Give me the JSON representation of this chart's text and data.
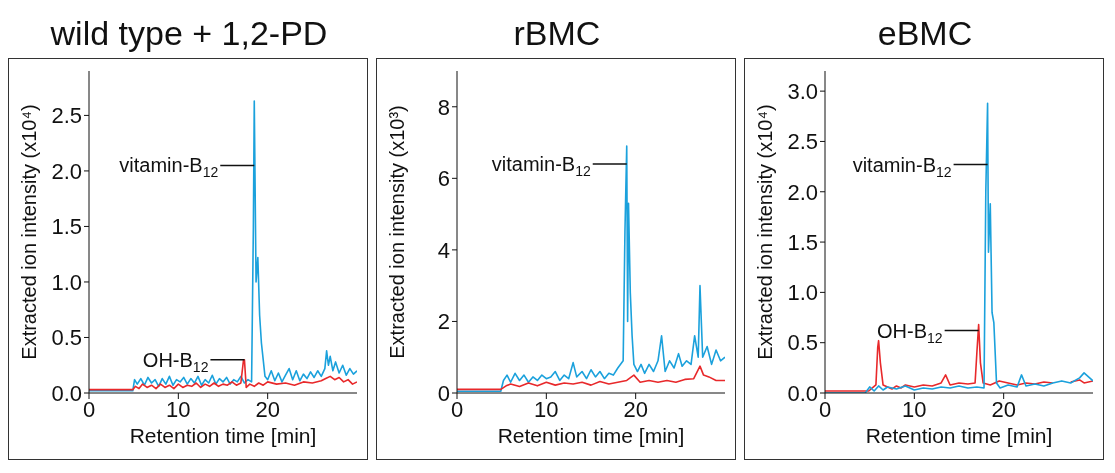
{
  "chart_data": [
    {
      "type": "line",
      "title": "wild type + 1,2-PD",
      "xlabel": "Retention time [min]",
      "ylabel": "Extracted ion intensity (x10⁴)",
      "xlim": [
        0,
        30
      ],
      "xticks": [
        0,
        10,
        20
      ],
      "ylim": [
        0,
        2.9
      ],
      "yticks": [
        {
          "value": 0,
          "label": "0.0"
        },
        0.5,
        {
          "value": 1,
          "label": "1.0"
        },
        1.5,
        {
          "value": 2,
          "label": "2.0"
        },
        2.5
      ],
      "annotations": [
        {
          "text": "vitamin-B$_{12}$",
          "x": 18.5,
          "y": 2.05
        },
        {
          "text": "OH-B$_{12}$",
          "x": 17.4,
          "y": 0.3
        }
      ],
      "series": [
        {
          "color": "#1ba1dc",
          "x": [
            0,
            4.9,
            5.1,
            5.4,
            5.8,
            6.2,
            6.6,
            7.0,
            7.4,
            7.8,
            8.2,
            8.6,
            9.0,
            9.4,
            9.8,
            10.2,
            10.6,
            11.0,
            11.4,
            11.8,
            12.2,
            12.6,
            13.0,
            13.4,
            13.8,
            14.2,
            14.6,
            15.0,
            15.4,
            15.8,
            16.2,
            16.6,
            17.0,
            17.4,
            17.8,
            18.2,
            18.4,
            18.5,
            18.7,
            18.9,
            19.1,
            19.3,
            19.5,
            19.7,
            20.0,
            20.4,
            20.8,
            21.2,
            21.6,
            22.0,
            22.4,
            22.8,
            23.2,
            23.6,
            24.0,
            24.4,
            24.8,
            25.2,
            25.6,
            26.0,
            26.4,
            26.6,
            26.8,
            27.0,
            27.3,
            27.6,
            28.0,
            28.4,
            28.8,
            29.2,
            29.6,
            30
          ],
          "values": [
            0.02,
            0.02,
            0.12,
            0.08,
            0.13,
            0.07,
            0.14,
            0.09,
            0.12,
            0.06,
            0.13,
            0.08,
            0.15,
            0.07,
            0.12,
            0.1,
            0.14,
            0.08,
            0.13,
            0.09,
            0.15,
            0.07,
            0.12,
            0.09,
            0.16,
            0.08,
            0.13,
            0.1,
            0.14,
            0.08,
            0.12,
            0.1,
            0.15,
            0.09,
            0.12,
            0.1,
            1.5,
            2.63,
            1.0,
            1.22,
            0.7,
            0.45,
            0.3,
            0.15,
            0.12,
            0.2,
            0.11,
            0.18,
            0.1,
            0.16,
            0.22,
            0.12,
            0.2,
            0.11,
            0.17,
            0.13,
            0.19,
            0.14,
            0.2,
            0.15,
            0.22,
            0.38,
            0.25,
            0.33,
            0.2,
            0.28,
            0.18,
            0.25,
            0.16,
            0.22,
            0.17,
            0.2
          ]
        },
        {
          "color": "#e8292b",
          "x": [
            0,
            4.9,
            5.2,
            5.6,
            6.0,
            6.5,
            7.0,
            7.5,
            8.0,
            8.5,
            9.0,
            9.5,
            10.0,
            10.5,
            11.0,
            11.5,
            12.0,
            12.5,
            13.0,
            13.5,
            14.0,
            14.5,
            15.0,
            15.5,
            16.0,
            16.5,
            17.0,
            17.3,
            17.4,
            17.6,
            18.0,
            18.5,
            19.0,
            19.5,
            20.0,
            21.0,
            22.0,
            23.0,
            24.0,
            25.0,
            26.0,
            26.5,
            27.0,
            27.5,
            28.0,
            28.5,
            29.0,
            29.5,
            30
          ],
          "values": [
            0.03,
            0.03,
            0.06,
            0.04,
            0.08,
            0.05,
            0.07,
            0.04,
            0.08,
            0.05,
            0.07,
            0.04,
            0.08,
            0.05,
            0.07,
            0.06,
            0.09,
            0.05,
            0.08,
            0.06,
            0.09,
            0.06,
            0.08,
            0.07,
            0.1,
            0.07,
            0.09,
            0.3,
            0.3,
            0.05,
            0.08,
            0.06,
            0.09,
            0.07,
            0.1,
            0.08,
            0.09,
            0.07,
            0.1,
            0.09,
            0.11,
            0.13,
            0.15,
            0.12,
            0.14,
            0.1,
            0.12,
            0.08,
            0.1
          ]
        }
      ]
    },
    {
      "type": "line",
      "title": "rBMC",
      "xlabel": "Retention time [min]",
      "ylabel": "Extracted ion intensity (x10³)",
      "xlim": [
        0,
        30
      ],
      "xticks": [
        0,
        10,
        20
      ],
      "ylim": [
        0,
        9
      ],
      "yticks": [
        0,
        2,
        4,
        6,
        8
      ],
      "annotations": [
        {
          "text": "vitamin-B$_{12}$",
          "x": 19.0,
          "y": 6.4
        }
      ],
      "series": [
        {
          "color": "#1ba1dc",
          "x": [
            0,
            4.9,
            5.2,
            5.6,
            6.0,
            6.5,
            7.0,
            7.5,
            8.0,
            8.5,
            9.0,
            9.5,
            10.0,
            10.5,
            11.0,
            11.5,
            12.0,
            12.5,
            13.0,
            13.4,
            14.0,
            14.5,
            15.0,
            15.5,
            16.0,
            16.5,
            17.0,
            17.5,
            18.0,
            18.6,
            18.8,
            19.0,
            19.1,
            19.2,
            19.4,
            19.6,
            19.8,
            20.2,
            20.6,
            21.0,
            21.5,
            22.0,
            22.5,
            22.9,
            23.3,
            23.8,
            24.3,
            24.8,
            25.2,
            25.7,
            26.2,
            26.6,
            27.0,
            27.2,
            27.5,
            28.0,
            28.5,
            29.0,
            29.5,
            30
          ],
          "values": [
            0.05,
            0.05,
            0.35,
            0.5,
            0.3,
            0.55,
            0.35,
            0.5,
            0.3,
            0.45,
            0.35,
            0.5,
            0.4,
            0.45,
            0.6,
            0.35,
            0.5,
            0.4,
            0.85,
            0.45,
            0.6,
            0.4,
            0.65,
            0.45,
            0.6,
            0.4,
            0.55,
            0.5,
            0.7,
            0.9,
            4.5,
            6.9,
            2.0,
            5.3,
            2.8,
            1.6,
            0.8,
            0.6,
            0.8,
            0.55,
            0.8,
            0.6,
            0.9,
            1.6,
            0.6,
            0.9,
            0.7,
            1.1,
            0.75,
            0.9,
            0.8,
            1.6,
            1.0,
            3.0,
            1.0,
            1.3,
            0.8,
            1.2,
            0.9,
            1.0
          ]
        },
        {
          "color": "#e8292b",
          "x": [
            0,
            4.9,
            5.5,
            6.0,
            7.0,
            8.0,
            9.0,
            10.0,
            11.0,
            12.0,
            13.0,
            14.0,
            15.0,
            16.0,
            17.0,
            18.0,
            19.0,
            19.8,
            20.5,
            21.5,
            22.5,
            23.5,
            24.5,
            25.5,
            26.5,
            27.2,
            27.6,
            28.2,
            29.0,
            30
          ],
          "values": [
            0.1,
            0.1,
            0.2,
            0.25,
            0.18,
            0.28,
            0.2,
            0.3,
            0.22,
            0.28,
            0.25,
            0.3,
            0.22,
            0.32,
            0.25,
            0.3,
            0.35,
            0.5,
            0.3,
            0.35,
            0.3,
            0.35,
            0.3,
            0.38,
            0.4,
            0.75,
            0.5,
            0.45,
            0.35,
            0.35
          ]
        }
      ]
    },
    {
      "type": "line",
      "title": "eBMC",
      "xlabel": "Retention time [min]",
      "ylabel": "Extracted ion intensity (x10⁴)",
      "xlim": [
        0,
        30
      ],
      "xticks": [
        0,
        10,
        20
      ],
      "ylim": [
        0,
        3.2
      ],
      "yticks": [
        {
          "value": 0,
          "label": "0.0"
        },
        0.5,
        {
          "value": 1,
          "label": "1.0"
        },
        1.5,
        {
          "value": 2,
          "label": "2.0"
        },
        2.5,
        {
          "value": 3,
          "label": "3.0"
        }
      ],
      "annotations": [
        {
          "text": "vitamin-B$_{12}$",
          "x": 18.2,
          "y": 2.27
        },
        {
          "text": "OH-B$_{12}$",
          "x": 17.2,
          "y": 0.62
        }
      ],
      "series": [
        {
          "color": "#e8292b",
          "x": [
            0,
            4.9,
            5.3,
            5.7,
            5.9,
            6.0,
            6.2,
            6.5,
            7.0,
            7.5,
            8.0,
            8.5,
            9.0,
            10.0,
            11.0,
            12.0,
            13.0,
            13.5,
            14.0,
            15.0,
            16.0,
            16.8,
            17.0,
            17.2,
            17.4,
            17.7,
            18.5,
            19.5,
            20.5,
            21.5,
            22.5,
            23.5,
            24.5,
            25.5,
            26.5,
            27.5,
            28.5,
            29.0,
            30
          ],
          "values": [
            0.02,
            0.02,
            0.05,
            0.08,
            0.45,
            0.52,
            0.3,
            0.08,
            0.06,
            0.04,
            0.07,
            0.05,
            0.08,
            0.06,
            0.08,
            0.07,
            0.1,
            0.18,
            0.08,
            0.1,
            0.09,
            0.1,
            0.4,
            0.68,
            0.3,
            0.1,
            0.08,
            0.12,
            0.1,
            0.08,
            0.1,
            0.09,
            0.11,
            0.1,
            null,
            0.11,
            0.13,
            0.1,
            0.12
          ]
        },
        {
          "color": "#1ba1dc",
          "x": [
            0,
            4.5,
            5.0,
            5.5,
            6.0,
            6.5,
            7.0,
            8.0,
            9.0,
            10.0,
            11.0,
            12.0,
            13.0,
            14.0,
            15.0,
            16.0,
            17.0,
            17.8,
            18.0,
            18.2,
            18.3,
            18.5,
            18.7,
            18.9,
            19.2,
            19.6,
            20.5,
            21.5,
            22.0,
            22.5,
            23.5,
            24.5,
            25.5,
            26.5,
            27.5,
            28.5,
            29.0,
            30
          ],
          "values": [
            0.0,
            0.0,
            0.06,
            0.02,
            0.07,
            0.03,
            0.06,
            0.04,
            0.07,
            0.03,
            0.05,
            0.04,
            0.06,
            0.05,
            0.07,
            0.05,
            0.06,
            0.05,
            2.0,
            2.88,
            1.4,
            1.88,
            0.8,
            0.7,
            0.1,
            0.05,
            0.08,
            0.06,
            0.18,
            0.07,
            0.09,
            0.07,
            0.1,
            0.12,
            0.1,
            0.15,
            0.2,
            0.12
          ]
        }
      ]
    }
  ]
}
